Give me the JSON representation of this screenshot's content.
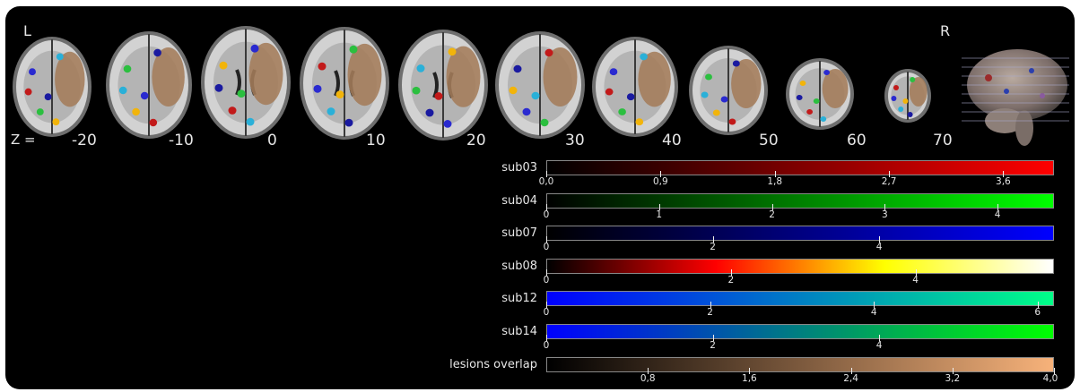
{
  "orientation": {
    "left": "L",
    "right": "R"
  },
  "z_prefix": "Z =",
  "slices": [
    {
      "z": "-20"
    },
    {
      "z": "-10"
    },
    {
      "z": "0"
    },
    {
      "z": "10"
    },
    {
      "z": "20"
    },
    {
      "z": "30"
    },
    {
      "z": "40"
    },
    {
      "z": "50"
    },
    {
      "z": "60"
    },
    {
      "z": "70"
    }
  ],
  "colorbars": [
    {
      "name": "sub03",
      "ticks": [
        "0,0",
        "0,9",
        "1,8",
        "2,7",
        "3,6"
      ],
      "tick_pos": [
        0,
        0.9,
        1.8,
        2.7,
        3.6
      ],
      "max": 4.0,
      "colors": [
        "#000000",
        "#ff0000"
      ],
      "tick_side": "below"
    },
    {
      "name": "sub04",
      "ticks": [
        "0",
        "1",
        "2",
        "3",
        "4"
      ],
      "tick_pos": [
        0,
        1,
        2,
        3,
        4
      ],
      "max": 4.5,
      "colors": [
        "#000000",
        "#00ff00"
      ],
      "tick_side": "below"
    },
    {
      "name": "sub07",
      "ticks": [
        "0",
        "2",
        "4"
      ],
      "tick_pos": [
        0,
        2,
        4
      ],
      "max": 6.1,
      "colors": [
        "#000000",
        "#0000ff"
      ],
      "tick_side": "below"
    },
    {
      "name": "sub08",
      "ticks": [
        "0",
        "2",
        "4"
      ],
      "tick_pos": [
        0,
        2,
        4
      ],
      "max": 5.5,
      "colors": [
        "#000000",
        "#ff0000",
        "#ffff00",
        "#ffffff"
      ],
      "tick_side": "below"
    },
    {
      "name": "sub12",
      "ticks": [
        "0",
        "2",
        "4",
        "6"
      ],
      "tick_pos": [
        0,
        2,
        4,
        6
      ],
      "max": 6.2,
      "colors": [
        "#0000ff",
        "#00ff88"
      ],
      "tick_side": "below"
    },
    {
      "name": "sub14",
      "ticks": [
        "0",
        "2",
        "4"
      ],
      "tick_pos": [
        0,
        2,
        4
      ],
      "max": 6.1,
      "colors": [
        "#0000ff",
        "#00ff00"
      ],
      "tick_side": "below"
    },
    {
      "name": "lesions overlap",
      "ticks": [
        "0,8",
        "1,6",
        "2,4",
        "3,2",
        "4,0"
      ],
      "tick_pos": [
        0.8,
        1.6,
        2.4,
        3.2,
        4.0
      ],
      "max": 4.0,
      "colors": [
        "#000000",
        "#f7b27a"
      ],
      "tick_side": "below"
    }
  ]
}
